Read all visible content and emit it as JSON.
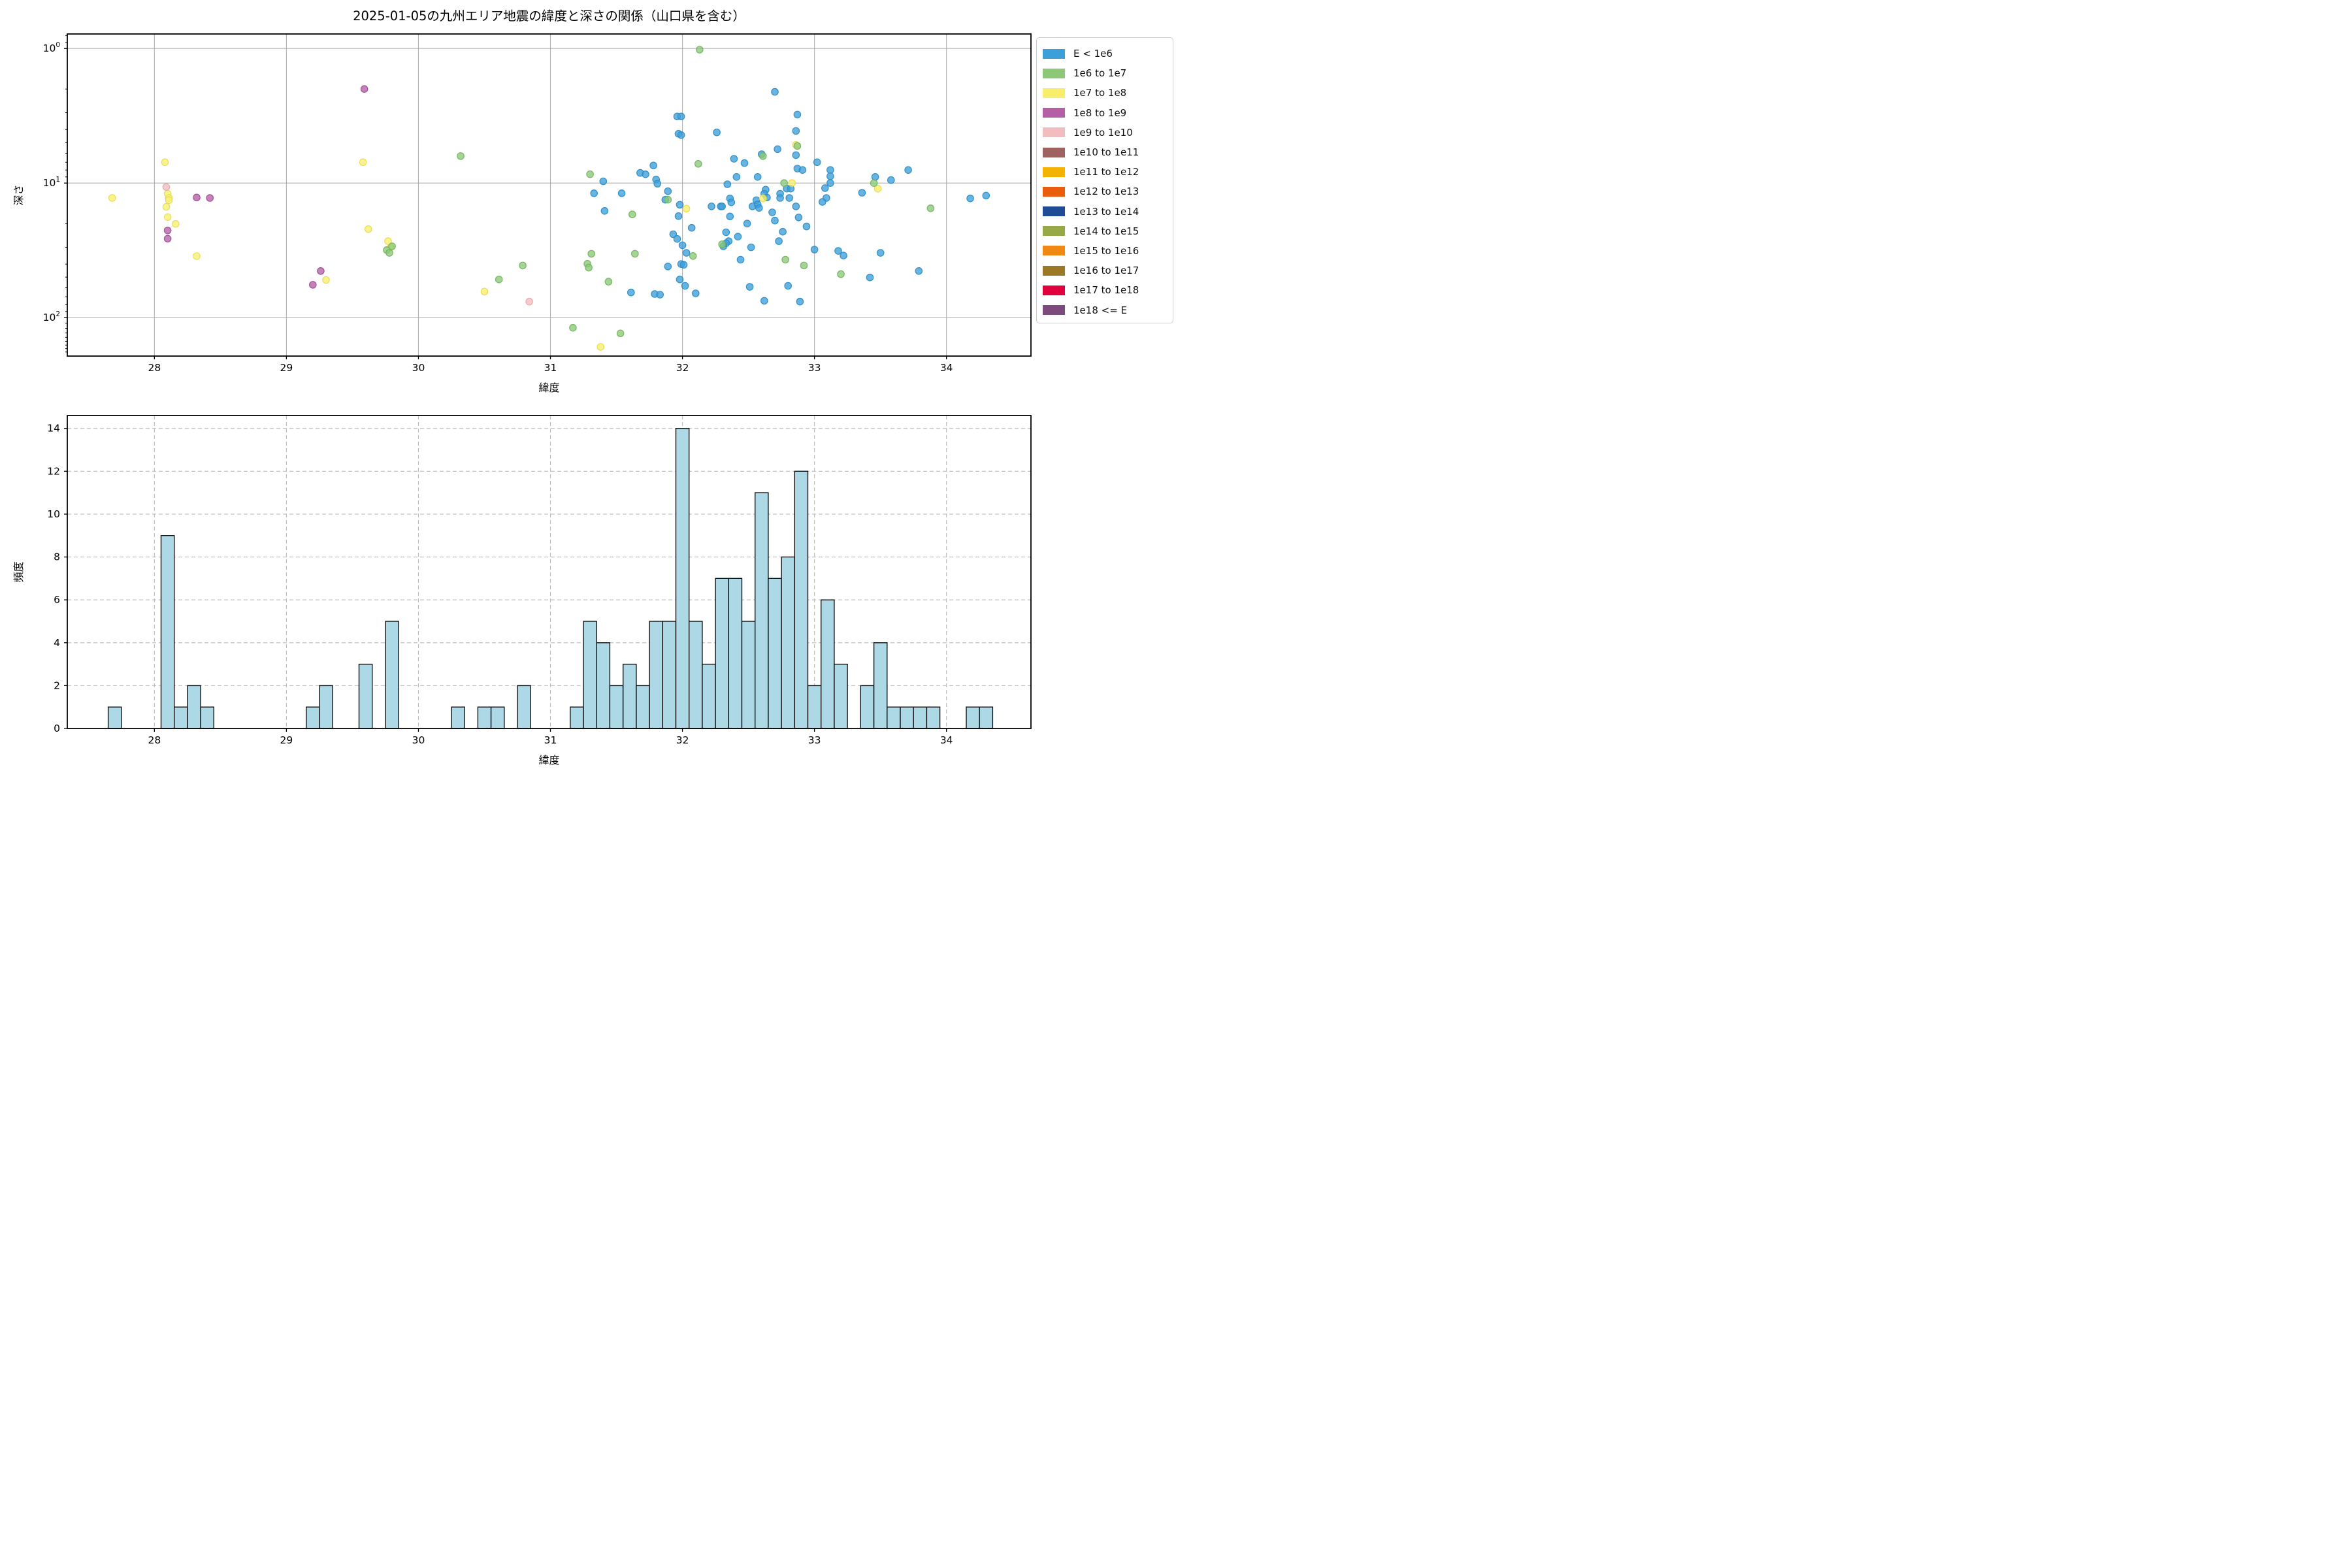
{
  "figure_title": "2025-01-05の九州エリア地震の緯度と深さの関係（山口県を含む）",
  "legend": {
    "items": [
      {
        "label": "E < 1e6",
        "color": "#3D9FD8"
      },
      {
        "label": "1e6 to 1e7",
        "color": "#8CC878"
      },
      {
        "label": "1e7 to 1e8",
        "color": "#F8EE6D"
      },
      {
        "label": "1e8 to 1e9",
        "color": "#B55FA7"
      },
      {
        "label": "1e9 to 1e10",
        "color": "#F3BDBF"
      },
      {
        "label": "1e10 to 1e11",
        "color": "#9E6360"
      },
      {
        "label": "1e11 to 1e12",
        "color": "#F5B301"
      },
      {
        "label": "1e12 to 1e13",
        "color": "#EA5D0D"
      },
      {
        "label": "1e13 to 1e14",
        "color": "#1F4C94"
      },
      {
        "label": "1e14 to 1e15",
        "color": "#97A847"
      },
      {
        "label": "1e15 to 1e16",
        "color": "#EF8815"
      },
      {
        "label": "1e16 to 1e17",
        "color": "#9A7826"
      },
      {
        "label": "1e17 to 1e18",
        "color": "#E0003C"
      },
      {
        "label": "1e18 <= E",
        "color": "#7C4A7D"
      }
    ]
  },
  "chart_data": [
    {
      "type": "scatter",
      "title": "2025-01-05の九州エリア地震の緯度と深さの関係（山口県を含む）",
      "xlabel": "緯度",
      "ylabel": "深さ",
      "xlim": [
        27.34,
        34.64
      ],
      "ylim": [
        0.78,
        193
      ],
      "yscale": "log",
      "x_ticks": [
        28,
        29,
        30,
        31,
        32,
        33,
        34
      ],
      "y_ticks_exp": [
        0,
        1,
        2
      ],
      "y_minor_ticks": [
        0.8,
        0.9,
        2,
        3,
        4,
        5,
        6,
        7,
        8,
        9,
        20,
        30,
        40,
        50,
        60,
        70,
        80,
        90,
        110,
        120,
        130,
        140,
        150,
        160,
        170,
        180
      ],
      "grid": "solid",
      "legend_position": "outside upper right",
      "series_key": {
        "b": {
          "name": "E < 1e6",
          "fill": "#3D9FD8",
          "edge": "#2B8CC8"
        },
        "g": {
          "name": "1e6 to 1e7",
          "fill": "#8CC878",
          "edge": "#72B55C"
        },
        "y": {
          "name": "1e7 to 1e8",
          "fill": "#F8EE6D",
          "edge": "#E8DC4E"
        },
        "m": {
          "name": "1e8 to 1e9",
          "fill": "#B55FA7",
          "edge": "#9F4C92"
        },
        "p": {
          "name": "1e9 to 1e10",
          "fill": "#F3BDBF",
          "edge": "#E9A9AC"
        }
      },
      "points": [
        [
          27.68,
          12.9,
          "y"
        ],
        [
          28.08,
          7.0,
          "y"
        ],
        [
          28.09,
          10.7,
          "p"
        ],
        [
          28.1,
          12.0,
          "y"
        ],
        [
          28.11,
          12.9,
          "y"
        ],
        [
          28.11,
          13.4,
          "y"
        ],
        [
          28.09,
          15.0,
          "y"
        ],
        [
          28.1,
          17.9,
          "y"
        ],
        [
          28.1,
          22.5,
          "m"
        ],
        [
          28.1,
          25.9,
          "m"
        ],
        [
          28.16,
          20.1,
          "y"
        ],
        [
          28.32,
          12.8,
          "m"
        ],
        [
          28.32,
          34.9,
          "y"
        ],
        [
          28.42,
          12.9,
          "m"
        ],
        [
          29.2,
          57.0,
          "m"
        ],
        [
          29.26,
          45.0,
          "m"
        ],
        [
          29.3,
          52.5,
          "y"
        ],
        [
          29.59,
          2.0,
          "m"
        ],
        [
          29.58,
          7.0,
          "y"
        ],
        [
          29.62,
          22.0,
          "y"
        ],
        [
          29.77,
          27.0,
          "y"
        ],
        [
          29.79,
          30.0,
          "y"
        ],
        [
          29.76,
          31.5,
          "g"
        ],
        [
          29.8,
          29.5,
          "g"
        ],
        [
          29.78,
          33.0,
          "g"
        ],
        [
          30.32,
          6.3,
          "g"
        ],
        [
          30.5,
          64.0,
          "y"
        ],
        [
          30.61,
          52.0,
          "g"
        ],
        [
          30.79,
          41.0,
          "g"
        ],
        [
          30.84,
          76.0,
          "p"
        ],
        [
          31.17,
          119,
          "g"
        ],
        [
          31.3,
          8.6,
          "g"
        ],
        [
          31.33,
          11.9,
          "b"
        ],
        [
          31.31,
          33.5,
          "g"
        ],
        [
          31.28,
          39.8,
          "g"
        ],
        [
          31.29,
          42.5,
          "g"
        ],
        [
          31.4,
          9.7,
          "b"
        ],
        [
          31.41,
          16.1,
          "b"
        ],
        [
          31.44,
          54.0,
          "g"
        ],
        [
          31.38,
          165,
          "y"
        ],
        [
          31.54,
          11.9,
          "b"
        ],
        [
          31.53,
          131,
          "g"
        ],
        [
          31.62,
          17.1,
          "g"
        ],
        [
          31.64,
          33.5,
          "g"
        ],
        [
          31.61,
          65.0,
          "b"
        ],
        [
          31.68,
          8.4,
          "b"
        ],
        [
          31.72,
          8.6,
          "b"
        ],
        [
          31.78,
          7.4,
          "b"
        ],
        [
          31.8,
          9.4,
          "b"
        ],
        [
          31.81,
          10.1,
          "b"
        ],
        [
          31.79,
          66.7,
          "b"
        ],
        [
          31.83,
          67.5,
          "b"
        ],
        [
          31.89,
          11.5,
          "b"
        ],
        [
          31.87,
          13.3,
          "b"
        ],
        [
          31.89,
          13.3,
          "g"
        ],
        [
          31.93,
          24.0,
          "b"
        ],
        [
          31.89,
          41.7,
          "b"
        ],
        [
          31.96,
          3.2,
          "b"
        ],
        [
          31.99,
          3.2,
          "b"
        ],
        [
          31.97,
          4.3,
          "b"
        ],
        [
          31.99,
          4.4,
          "b"
        ],
        [
          31.98,
          14.5,
          "b"
        ],
        [
          32.03,
          15.5,
          "y"
        ],
        [
          31.97,
          17.6,
          "b"
        ],
        [
          31.96,
          26.0,
          "b"
        ],
        [
          32.0,
          29.0,
          "b"
        ],
        [
          32.03,
          33.0,
          "b"
        ],
        [
          31.99,
          40.0,
          "b"
        ],
        [
          32.01,
          40.5,
          "b"
        ],
        [
          31.98,
          52.0,
          "b"
        ],
        [
          32.02,
          58.0,
          "b"
        ],
        [
          32.13,
          1.02,
          "g"
        ],
        [
          32.12,
          7.2,
          "g"
        ],
        [
          32.07,
          21.5,
          "b"
        ],
        [
          32.08,
          34.8,
          "g"
        ],
        [
          32.1,
          66.0,
          "b"
        ],
        [
          32.26,
          4.2,
          "b"
        ],
        [
          32.22,
          14.9,
          "b"
        ],
        [
          32.29,
          14.9,
          "b"
        ],
        [
          32.34,
          10.2,
          "b"
        ],
        [
          32.3,
          14.9,
          "b"
        ],
        [
          32.33,
          23.2,
          "b"
        ],
        [
          32.35,
          27.0,
          "b"
        ],
        [
          32.33,
          28.0,
          "b"
        ],
        [
          32.3,
          28.5,
          "g"
        ],
        [
          32.31,
          29.5,
          "b"
        ],
        [
          32.39,
          6.6,
          "b"
        ],
        [
          32.41,
          9.0,
          "b"
        ],
        [
          32.36,
          13.0,
          "b"
        ],
        [
          32.37,
          13.9,
          "b"
        ],
        [
          32.36,
          17.7,
          "b"
        ],
        [
          32.42,
          25.0,
          "b"
        ],
        [
          32.44,
          37.1,
          "b"
        ],
        [
          32.47,
          7.1,
          "b"
        ],
        [
          32.53,
          14.9,
          "b"
        ],
        [
          32.49,
          20.0,
          "b"
        ],
        [
          32.52,
          30.0,
          "b"
        ],
        [
          32.51,
          59.0,
          "b"
        ],
        [
          32.6,
          6.1,
          "b"
        ],
        [
          32.61,
          6.3,
          "g"
        ],
        [
          32.57,
          9.0,
          "b"
        ],
        [
          32.63,
          11.2,
          "b"
        ],
        [
          32.62,
          12.0,
          "b"
        ],
        [
          32.64,
          12.8,
          "b"
        ],
        [
          32.61,
          13.0,
          "y"
        ],
        [
          32.56,
          13.4,
          "b"
        ],
        [
          32.57,
          14.4,
          "b"
        ],
        [
          32.58,
          15.3,
          "b"
        ],
        [
          32.62,
          75.0,
          "b"
        ],
        [
          32.7,
          2.1,
          "b"
        ],
        [
          32.72,
          5.6,
          "b"
        ],
        [
          32.74,
          12.0,
          "b"
        ],
        [
          32.74,
          12.9,
          "b"
        ],
        [
          32.68,
          16.5,
          "b"
        ],
        [
          32.7,
          19.0,
          "b"
        ],
        [
          32.73,
          27.0,
          "b"
        ],
        [
          32.77,
          10.0,
          "g"
        ],
        [
          32.83,
          10.0,
          "y"
        ],
        [
          32.79,
          11.0,
          "b"
        ],
        [
          32.82,
          11.0,
          "b"
        ],
        [
          32.81,
          12.9,
          "b"
        ],
        [
          32.76,
          23.0,
          "b"
        ],
        [
          32.78,
          37.1,
          "g"
        ],
        [
          32.8,
          58.0,
          "b"
        ],
        [
          32.87,
          3.1,
          "b"
        ],
        [
          32.86,
          4.1,
          "b"
        ],
        [
          32.86,
          5.2,
          "y"
        ],
        [
          32.87,
          5.3,
          "g"
        ],
        [
          32.86,
          6.2,
          "b"
        ],
        [
          32.87,
          7.8,
          "b"
        ],
        [
          32.91,
          8.0,
          "b"
        ],
        [
          32.86,
          14.9,
          "b"
        ],
        [
          32.88,
          18.0,
          "b"
        ],
        [
          32.94,
          21.0,
          "b"
        ],
        [
          32.92,
          41.0,
          "g"
        ],
        [
          32.89,
          76.0,
          "b"
        ],
        [
          33.02,
          7.0,
          "b"
        ],
        [
          33.0,
          31.2,
          "b"
        ],
        [
          33.12,
          8.0,
          "b"
        ],
        [
          33.12,
          8.9,
          "b"
        ],
        [
          33.12,
          10.0,
          "b"
        ],
        [
          33.08,
          10.9,
          "b"
        ],
        [
          33.09,
          12.9,
          "b"
        ],
        [
          33.06,
          13.8,
          "b"
        ],
        [
          33.18,
          31.9,
          "b"
        ],
        [
          33.22,
          34.6,
          "b"
        ],
        [
          33.2,
          47.5,
          "g"
        ],
        [
          33.36,
          11.8,
          "b"
        ],
        [
          33.42,
          50.3,
          "b"
        ],
        [
          33.46,
          9.0,
          "b"
        ],
        [
          33.45,
          10.0,
          "g"
        ],
        [
          33.48,
          11.0,
          "y"
        ],
        [
          33.5,
          33.0,
          "b"
        ],
        [
          33.58,
          9.5,
          "b"
        ],
        [
          33.71,
          8.0,
          "b"
        ],
        [
          33.79,
          45.0,
          "b"
        ],
        [
          33.88,
          15.4,
          "g"
        ],
        [
          34.18,
          13.0,
          "b"
        ],
        [
          34.3,
          12.4,
          "b"
        ]
      ]
    },
    {
      "type": "bar",
      "xlabel": "緯度",
      "ylabel": "頻度",
      "xlim": [
        27.34,
        34.64
      ],
      "ylim": [
        0,
        14.6
      ],
      "x_ticks": [
        28,
        29,
        30,
        31,
        32,
        33,
        34
      ],
      "y_ticks": [
        0,
        2,
        4,
        6,
        8,
        10,
        12,
        14
      ],
      "grid": "dashed",
      "bin_width": 0.1,
      "bar_fill": "#ADD8E6",
      "bar_edge": "#111111",
      "bins": [
        [
          27.7,
          1
        ],
        [
          28.1,
          9
        ],
        [
          28.2,
          1
        ],
        [
          28.3,
          2
        ],
        [
          28.4,
          1
        ],
        [
          29.2,
          1
        ],
        [
          29.3,
          2
        ],
        [
          29.6,
          3
        ],
        [
          29.8,
          5
        ],
        [
          30.3,
          1
        ],
        [
          30.5,
          1
        ],
        [
          30.6,
          1
        ],
        [
          30.8,
          2
        ],
        [
          31.2,
          1
        ],
        [
          31.3,
          5
        ],
        [
          31.4,
          4
        ],
        [
          31.5,
          2
        ],
        [
          31.6,
          3
        ],
        [
          31.7,
          2
        ],
        [
          31.8,
          5
        ],
        [
          31.9,
          5
        ],
        [
          32.0,
          14
        ],
        [
          32.1,
          5
        ],
        [
          32.2,
          3
        ],
        [
          32.3,
          7
        ],
        [
          32.4,
          7
        ],
        [
          32.5,
          5
        ],
        [
          32.6,
          11
        ],
        [
          32.7,
          7
        ],
        [
          32.8,
          8
        ],
        [
          32.9,
          12
        ],
        [
          33.0,
          2
        ],
        [
          33.1,
          6
        ],
        [
          33.2,
          3
        ],
        [
          33.4,
          2
        ],
        [
          33.5,
          4
        ],
        [
          33.6,
          1
        ],
        [
          33.7,
          1
        ],
        [
          33.8,
          1
        ],
        [
          33.9,
          1
        ],
        [
          34.2,
          1
        ],
        [
          34.3,
          1
        ]
      ]
    }
  ],
  "style": {
    "grid_color": "#b0b0b0",
    "hist_grid_color": "#bbbbbb",
    "spine_color": "#000000",
    "marker_radius": 5.2,
    "marker_alpha": 0.78
  }
}
